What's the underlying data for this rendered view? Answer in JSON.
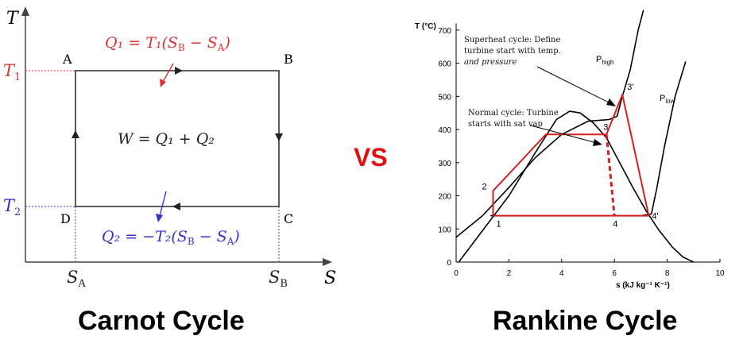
{
  "carnot": {
    "axis_t": "T",
    "axis_s": "S",
    "t1": "T",
    "t1_sub": "1",
    "t2": "T",
    "t2_sub": "2",
    "sa": "S",
    "sa_sub": "A",
    "sb": "S",
    "sb_sub": "B",
    "corner_a": "A",
    "corner_b": "B",
    "corner_c": "C",
    "corner_d": "D",
    "q1": "Q₁ = T₁(S",
    "q1_tail": " − S",
    "q1_end": ")",
    "w": "W = Q₁ + Q₂",
    "q2": "Q₂ = −T₂(S",
    "q2_tail": " − S",
    "q2_end": ")",
    "sub_b": "B",
    "sub_a": "A",
    "caption": "Carnot Cycle",
    "colors": {
      "red": "#e03030",
      "blue": "#3333cc",
      "line": "#333333"
    }
  },
  "vs": "VS",
  "rankine": {
    "caption": "Rankine Cycle",
    "y_axis_label": "T (°C)",
    "x_axis_label": "s (kJ kg⁻¹ K⁻¹)",
    "superheat_note": [
      "Superheat cycle: Define",
      "turbine start with temp.",
      "and pressure"
    ],
    "normal_note": [
      "Normal cycle: Turbine",
      "starts with sat vap"
    ],
    "p_high": "P",
    "p_high_sub": "high",
    "p_low": "P",
    "p_low_sub": "low",
    "point_labels": [
      "1",
      "2",
      "3",
      "3'",
      "4",
      "4'"
    ],
    "colors": {
      "cycle": "#d42020",
      "curves": "#000000"
    }
  },
  "chart_data": {
    "type": "line",
    "title": "",
    "xlabel": "s (kJ kg⁻¹ K⁻¹)",
    "ylabel": "T (°C)",
    "xlim": [
      0,
      10
    ],
    "ylim": [
      0,
      750
    ],
    "x_ticks": [
      0,
      2,
      4,
      6,
      8,
      10
    ],
    "y_ticks": [
      0,
      100,
      200,
      300,
      400,
      500,
      600,
      700
    ],
    "series": [
      {
        "name": "",
        "x": [
          0.1,
          1.0,
          2.0,
          3.0,
          3.8,
          4.3,
          4.7,
          5.2,
          5.7,
          6.2,
          6.7,
          7.2,
          7.7,
          8.2,
          8.6,
          9.0
        ],
        "y": [
          0,
          95,
          200,
          330,
          430,
          455,
          450,
          420,
          375,
          300,
          225,
          155,
          95,
          45,
          15,
          0
        ]
      },
      {
        "name": "P high",
        "x": [
          0.0,
          1.0,
          2.0,
          3.0,
          4.0,
          5.0,
          5.8,
          6.1,
          6.3,
          6.6,
          6.9,
          7.1
        ],
        "y": [
          75,
          140,
          225,
          315,
          385,
          425,
          430,
          440,
          500,
          580,
          700,
          760
        ]
      },
      {
        "name": "P low",
        "x": [
          1.3,
          3.0,
          5.0,
          7.0,
          7.4,
          7.6,
          7.9,
          8.3,
          8.7
        ],
        "y": [
          140,
          140,
          140,
          140,
          145,
          220,
          350,
          500,
          605
        ]
      },
      {
        "name": "Rankine cycle",
        "x": [
          1.4,
          1.4,
          3.4,
          5.7,
          6.3,
          7.3,
          1.4
        ],
        "y": [
          140,
          215,
          385,
          385,
          505,
          140,
          140
        ]
      },
      {
        "name": "Normal cycle expansion",
        "x": [
          5.7,
          6.0
        ],
        "y": [
          385,
          140
        ]
      }
    ],
    "points": [
      {
        "label": "1",
        "x": 1.4,
        "y": 140
      },
      {
        "label": "2",
        "x": 1.4,
        "y": 215
      },
      {
        "label": "3",
        "x": 5.7,
        "y": 385
      },
      {
        "label": "3'",
        "x": 6.3,
        "y": 505
      },
      {
        "label": "4",
        "x": 6.0,
        "y": 140
      },
      {
        "label": "4'",
        "x": 7.3,
        "y": 140
      }
    ]
  }
}
